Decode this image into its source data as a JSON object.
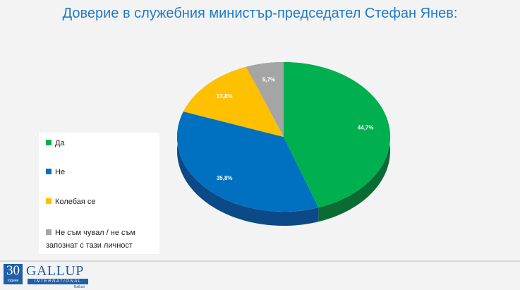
{
  "chart_data": {
    "type": "pie",
    "title": "Доверие в служебния министър-председател Стефан Янев:",
    "categories": [
      "Да",
      "Не",
      "Колебая се",
      "Не съм чувал / не съм запознат с тази личност"
    ],
    "values": [
      44.7,
      35.8,
      13.8,
      5.7
    ],
    "labels": [
      "44,7%",
      "35,8%",
      "13,8%",
      "5,7%"
    ],
    "colors": [
      "#00b050",
      "#0070c0",
      "#ffc000",
      "#a5a5a5"
    ],
    "side_colors": [
      "#0a6b33",
      "#0b4a86",
      "#b58800",
      "#777777"
    ],
    "legend_position": "left"
  },
  "logo": {
    "number": "30",
    "sub": "години",
    "name": "GALLUP",
    "intl": "INTERNATIONAL",
    "country": "Balkan"
  }
}
